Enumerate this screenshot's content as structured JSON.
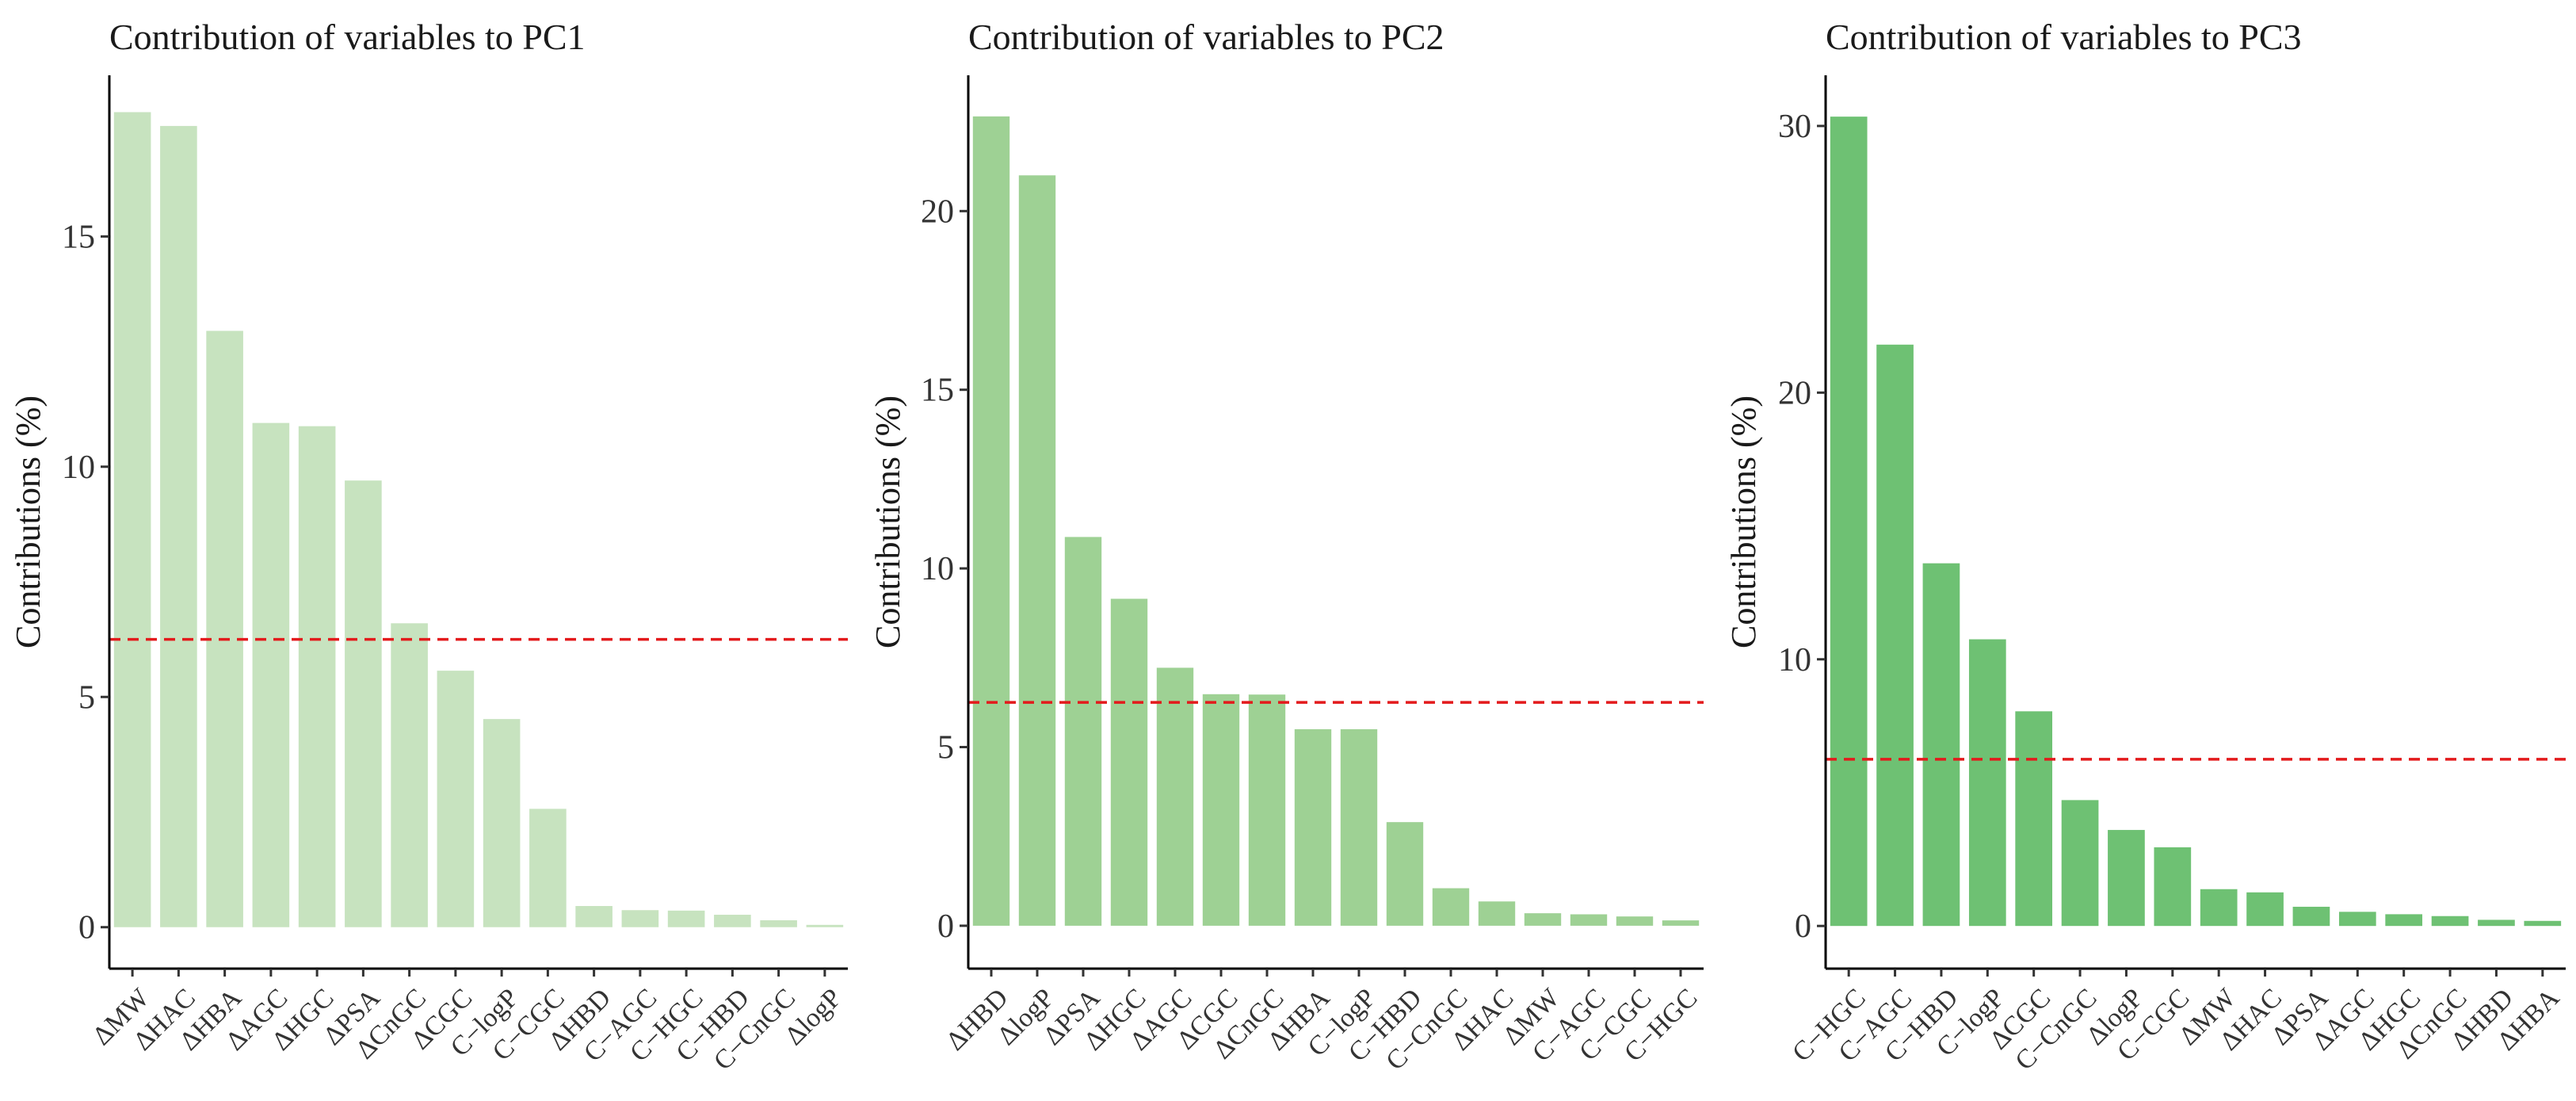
{
  "chart_data": [
    {
      "type": "bar",
      "title": "Contribution of variables to PC1",
      "xlabel": "",
      "ylabel": "Contributions (%)",
      "categories": [
        "ΔMW",
        "ΔHAC",
        "ΔHBA",
        "ΔAGC",
        "ΔHGC",
        "ΔPSA",
        "ΔCnGC",
        "ΔCGC",
        "C−logP",
        "C−CGC",
        "ΔHBD",
        "C−AGC",
        "C−HGC",
        "C−HBD",
        "C−CnGC",
        "ΔlogP"
      ],
      "values": [
        17.7,
        17.4,
        12.95,
        10.95,
        10.88,
        9.7,
        6.6,
        5.57,
        4.52,
        2.57,
        0.46,
        0.37,
        0.36,
        0.27,
        0.15,
        0.05
      ],
      "ylim": [
        -0.9,
        18.5
      ],
      "yticks": [
        0,
        5,
        10,
        15
      ],
      "reference_line": 6.25,
      "bar_color": "#c7e3bf",
      "reference_color": "#e31a1c"
    },
    {
      "type": "bar",
      "title": "Contribution of variables to PC2",
      "xlabel": "",
      "ylabel": "Contributions (%)",
      "categories": [
        "ΔHBD",
        "ΔlogP",
        "ΔPSA",
        "ΔHGC",
        "ΔAGC",
        "ΔCGC",
        "ΔCnGC",
        "ΔHBA",
        "C−logP",
        "C−HBD",
        "C−CnGC",
        "ΔHAC",
        "ΔMW",
        "C−AGC",
        "C−CGC",
        "C−HGC"
      ],
      "values": [
        22.65,
        21.0,
        10.88,
        9.15,
        7.22,
        6.48,
        6.47,
        5.5,
        5.5,
        2.9,
        1.05,
        0.68,
        0.35,
        0.32,
        0.26,
        0.15
      ],
      "ylim": [
        -1.2,
        23.8
      ],
      "yticks": [
        0,
        5,
        10,
        15,
        20
      ],
      "reference_line": 6.25,
      "bar_color": "#9ed194",
      "reference_color": "#e31a1c"
    },
    {
      "type": "bar",
      "title": "Contribution of variables to PC3",
      "xlabel": "",
      "ylabel": "Contributions (%)",
      "categories": [
        "C−HGC",
        "C−AGC",
        "C−HBD",
        "C−logP",
        "ΔCGC",
        "C−CnGC",
        "ΔlogP",
        "C−CGC",
        "ΔMW",
        "ΔHAC",
        "ΔPSA",
        "ΔAGC",
        "ΔHGC",
        "ΔCnGC",
        "ΔHBD",
        "ΔHBA"
      ],
      "values": [
        30.35,
        21.8,
        13.6,
        10.75,
        8.05,
        4.72,
        3.6,
        2.95,
        1.38,
        1.26,
        0.72,
        0.53,
        0.44,
        0.37,
        0.23,
        0.19
      ],
      "ylim": [
        -1.6,
        31.9
      ],
      "yticks": [
        0,
        10,
        20,
        30
      ],
      "reference_line": 6.25,
      "bar_color": "#6ec173",
      "reference_color": "#e31a1c"
    }
  ]
}
